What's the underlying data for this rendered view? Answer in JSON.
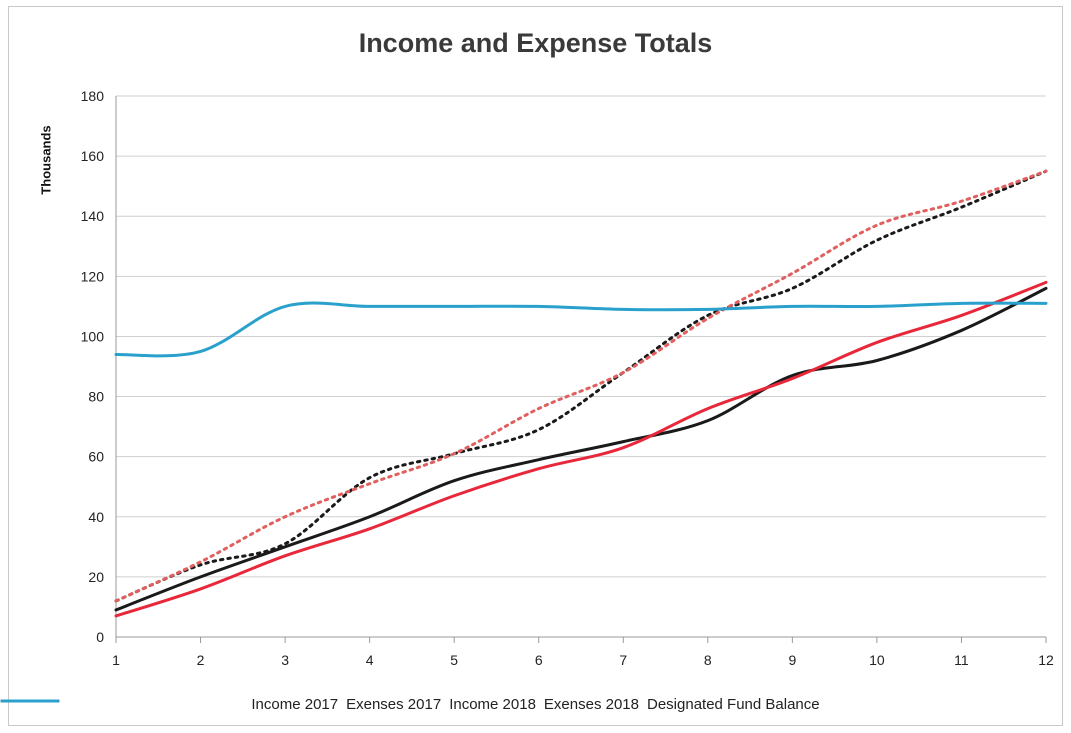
{
  "chart_data": {
    "type": "line",
    "title": "Income and Expense Totals",
    "xlabel": "",
    "ylabel": "Thousands",
    "categories": [
      1,
      2,
      3,
      4,
      5,
      6,
      7,
      8,
      9,
      10,
      11,
      12
    ],
    "xlim": [
      1,
      12
    ],
    "ylim": [
      0,
      180
    ],
    "yticks": [
      0,
      20,
      40,
      60,
      80,
      100,
      120,
      140,
      160,
      180
    ],
    "grid": true,
    "legend": "bottom",
    "series": [
      {
        "name": "Income 2017",
        "color": "#1a1a1a",
        "dash": "dotted",
        "values": [
          12,
          24,
          31,
          53,
          61,
          69,
          88,
          107,
          116,
          132,
          143,
          155
        ]
      },
      {
        "name": "Exenses 2017",
        "color": "#e06060",
        "dash": "dotted",
        "values": [
          12,
          25,
          40,
          51,
          61,
          76,
          88,
          106,
          121,
          137,
          145,
          155
        ]
      },
      {
        "name": "Income 2018",
        "color": "#1a1a1a",
        "dash": "solid",
        "values": [
          9,
          20,
          30,
          40,
          52,
          59,
          65,
          72,
          87,
          92,
          102,
          116
        ]
      },
      {
        "name": "Exenses 2018",
        "color": "#e8283a",
        "dash": "solid",
        "values": [
          7,
          16,
          27,
          36,
          47,
          56,
          63,
          76,
          86,
          98,
          107,
          118
        ]
      },
      {
        "name": "Designated Fund Balance",
        "color": "#2aa0cc",
        "dash": "solid",
        "values": [
          94,
          95,
          110,
          110,
          110,
          110,
          109,
          109,
          110,
          110,
          111,
          111
        ]
      }
    ]
  }
}
